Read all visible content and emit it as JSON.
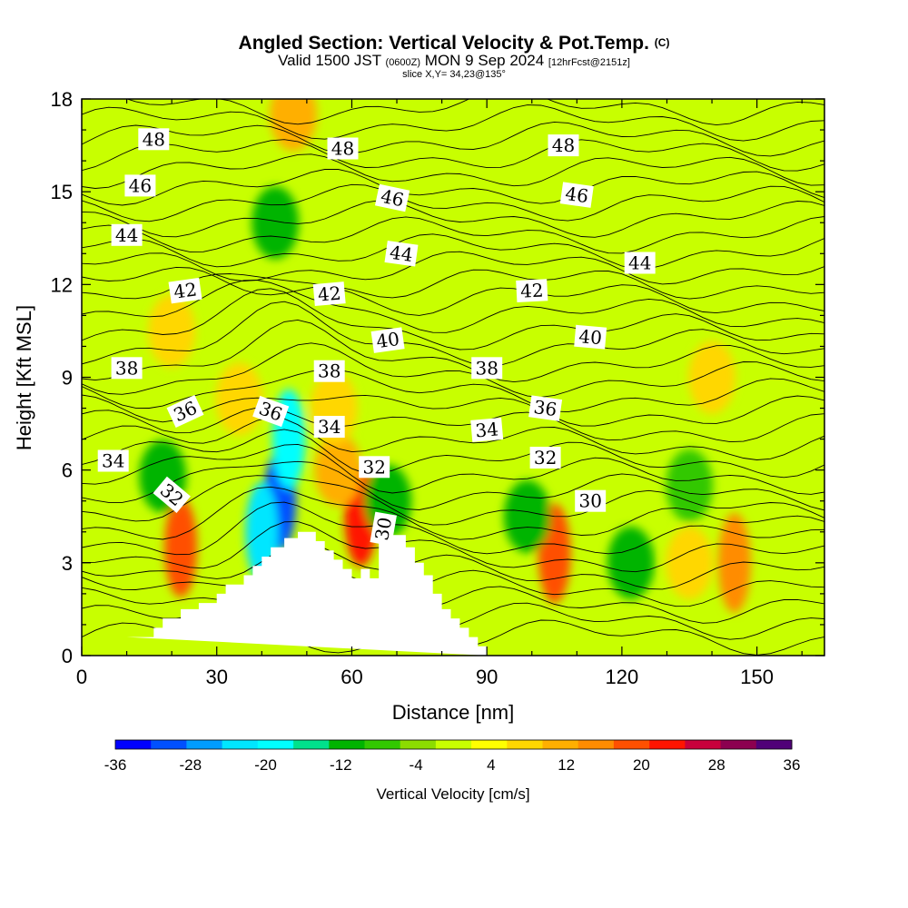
{
  "chart_data": {
    "type": "heatmap",
    "title": "Angled Section: Vertical Velocity & Pot.Temp.",
    "title_suffix": "(C)",
    "subtitle_parts": [
      "Valid 1500 JST",
      "(0600Z)",
      "MON 9 Sep 2024",
      "[12hrFcst@2151z]"
    ],
    "slice_label": "slice X,Y= 34,23@135°",
    "xlabel": "Distance [nm]",
    "ylabel": "Height [Kft MSL]",
    "xlim": [
      0,
      165
    ],
    "ylim": [
      0,
      18
    ],
    "x_ticks": [
      0,
      30,
      60,
      90,
      120,
      150
    ],
    "y_ticks": [
      0,
      3,
      6,
      9,
      12,
      15,
      18
    ],
    "colorbar": {
      "label": "Vertical Velocity [cm/s]",
      "min": -36,
      "max": 36,
      "step": 4,
      "tick_labels": [
        -36,
        -28,
        -20,
        -12,
        -4,
        4,
        12,
        20,
        28,
        36
      ],
      "colors": [
        "#0000ff",
        "#0050ff",
        "#009cff",
        "#00e6ff",
        "#00ffff",
        "#00e18c",
        "#00b400",
        "#32c800",
        "#8cdc00",
        "#c8ff00",
        "#ffff00",
        "#ffd700",
        "#ffaf00",
        "#ff8c00",
        "#ff5000",
        "#ff1400",
        "#c8003c",
        "#8c0050",
        "#500078"
      ]
    },
    "terrain": [
      [
        10,
        0.6
      ],
      [
        16,
        0.6
      ],
      [
        16,
        0.9
      ],
      [
        18,
        0.9
      ],
      [
        18,
        1.2
      ],
      [
        20,
        1.2
      ],
      [
        22,
        1.2
      ],
      [
        22,
        1.5
      ],
      [
        26,
        1.5
      ],
      [
        26,
        1.7
      ],
      [
        30,
        1.7
      ],
      [
        30,
        2.0
      ],
      [
        32,
        2.0
      ],
      [
        32,
        2.3
      ],
      [
        36,
        2.3
      ],
      [
        36,
        2.6
      ],
      [
        38,
        2.6
      ],
      [
        38,
        2.9
      ],
      [
        40,
        2.9
      ],
      [
        40,
        3.2
      ],
      [
        42,
        3.2
      ],
      [
        42,
        3.5
      ],
      [
        45,
        3.5
      ],
      [
        45,
        3.8
      ],
      [
        48,
        3.8
      ],
      [
        48,
        4.0
      ],
      [
        52,
        4.0
      ],
      [
        52,
        3.7
      ],
      [
        54,
        3.7
      ],
      [
        54,
        3.4
      ],
      [
        56,
        3.4
      ],
      [
        56,
        3.1
      ],
      [
        58,
        3.1
      ],
      [
        58,
        2.8
      ],
      [
        60,
        2.8
      ],
      [
        60,
        2.5
      ],
      [
        62,
        2.5
      ],
      [
        62,
        2.8
      ],
      [
        64,
        2.8
      ],
      [
        64,
        2.5
      ],
      [
        66,
        2.5
      ],
      [
        66,
        3.8
      ],
      [
        68,
        3.8
      ],
      [
        68,
        3.9
      ],
      [
        72,
        3.9
      ],
      [
        72,
        3.5
      ],
      [
        74,
        3.5
      ],
      [
        74,
        3.0
      ],
      [
        76,
        3.0
      ],
      [
        76,
        2.6
      ],
      [
        78,
        2.6
      ],
      [
        78,
        2.0
      ],
      [
        80,
        2.0
      ],
      [
        80,
        1.5
      ],
      [
        82,
        1.5
      ],
      [
        82,
        1.2
      ],
      [
        84,
        1.2
      ],
      [
        84,
        0.9
      ],
      [
        86,
        0.9
      ],
      [
        86,
        0.6
      ],
      [
        88,
        0.6
      ],
      [
        88,
        0.3
      ],
      [
        90,
        0.3
      ],
      [
        90,
        0
      ]
    ],
    "vertical_velocity_cells": [
      {
        "x": 22,
        "y": 3.5,
        "v": 22
      },
      {
        "x": 18,
        "y": 5.8,
        "v": -10
      },
      {
        "x": 44,
        "y": 5.0,
        "v": -32
      },
      {
        "x": 40,
        "y": 4.0,
        "v": -22
      },
      {
        "x": 46,
        "y": 7.0,
        "v": -18
      },
      {
        "x": 62,
        "y": 4.5,
        "v": 24
      },
      {
        "x": 57,
        "y": 6.0,
        "v": 14
      },
      {
        "x": 68,
        "y": 5.0,
        "v": -12
      },
      {
        "x": 105,
        "y": 3.3,
        "v": 22
      },
      {
        "x": 99,
        "y": 4.5,
        "v": -10
      },
      {
        "x": 122,
        "y": 3.0,
        "v": -10
      },
      {
        "x": 145,
        "y": 3.0,
        "v": 16
      },
      {
        "x": 135,
        "y": 3.0,
        "v": 10
      },
      {
        "x": 43,
        "y": 14.0,
        "v": -10
      },
      {
        "x": 47,
        "y": 17.5,
        "v": 12
      },
      {
        "x": 20,
        "y": 10.5,
        "v": 8
      },
      {
        "x": 56,
        "y": 8.0,
        "v": 10
      },
      {
        "x": 35,
        "y": 8.3,
        "v": 8
      },
      {
        "x": 140,
        "y": 9.0,
        "v": 8
      },
      {
        "x": 135,
        "y": 5.5,
        "v": -6
      }
    ],
    "theta_contour_labels": [
      {
        "text": "48",
        "x": 16,
        "y": 16.7,
        "angle": 0
      },
      {
        "text": "48",
        "x": 58,
        "y": 16.4,
        "angle": 0
      },
      {
        "text": "48",
        "x": 107,
        "y": 16.5,
        "angle": 0
      },
      {
        "text": "46",
        "x": 13,
        "y": 15.2,
        "angle": 0
      },
      {
        "text": "46",
        "x": 69,
        "y": 14.8,
        "angle": 12
      },
      {
        "text": "46",
        "x": 110,
        "y": 14.9,
        "angle": 8
      },
      {
        "text": "44",
        "x": 10,
        "y": 13.6,
        "angle": 0
      },
      {
        "text": "44",
        "x": 71,
        "y": 13.0,
        "angle": 8
      },
      {
        "text": "44",
        "x": 124,
        "y": 12.7,
        "angle": 0
      },
      {
        "text": "42",
        "x": 23,
        "y": 11.8,
        "angle": -8
      },
      {
        "text": "42",
        "x": 55,
        "y": 11.7,
        "angle": -5
      },
      {
        "text": "42",
        "x": 100,
        "y": 11.8,
        "angle": -3
      },
      {
        "text": "40",
        "x": 68,
        "y": 10.2,
        "angle": -8
      },
      {
        "text": "40",
        "x": 113,
        "y": 10.3,
        "angle": 5
      },
      {
        "text": "38",
        "x": 10,
        "y": 9.3,
        "angle": 0
      },
      {
        "text": "38",
        "x": 55,
        "y": 9.2,
        "angle": 0
      },
      {
        "text": "38",
        "x": 90,
        "y": 9.3,
        "angle": 0
      },
      {
        "text": "36",
        "x": 23,
        "y": 7.9,
        "angle": -25
      },
      {
        "text": "36",
        "x": 42,
        "y": 7.9,
        "angle": 20
      },
      {
        "text": "36",
        "x": 103,
        "y": 8.0,
        "angle": 8
      },
      {
        "text": "34",
        "x": 7,
        "y": 6.3,
        "angle": 0
      },
      {
        "text": "34",
        "x": 55,
        "y": 7.4,
        "angle": 0
      },
      {
        "text": "34",
        "x": 90,
        "y": 7.3,
        "angle": -5
      },
      {
        "text": "32",
        "x": 20,
        "y": 5.2,
        "angle": 40
      },
      {
        "text": "32",
        "x": 65,
        "y": 6.1,
        "angle": 0
      },
      {
        "text": "32",
        "x": 103,
        "y": 6.4,
        "angle": 0
      },
      {
        "text": "30",
        "x": 67,
        "y": 4.1,
        "angle": -80
      },
      {
        "text": "30",
        "x": 113,
        "y": 5.0,
        "angle": 0
      }
    ]
  }
}
